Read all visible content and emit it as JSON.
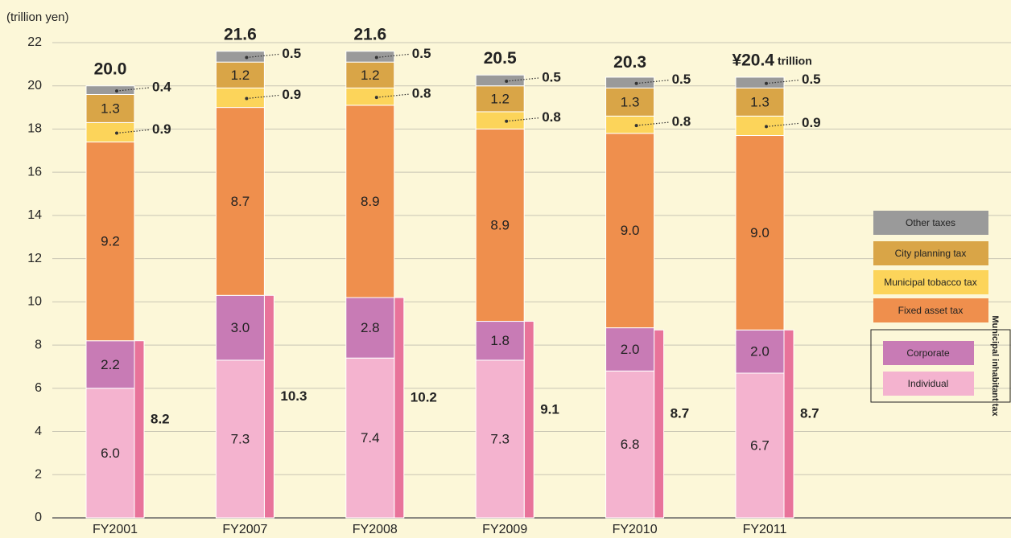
{
  "chart_data": {
    "type": "stacked_bar",
    "y_label": "(trillion yen)",
    "categories": [
      "FY2001",
      "FY2007",
      "FY2008",
      "FY2009",
      "FY2010",
      "FY2011"
    ],
    "series": [
      {
        "name": "Individual",
        "color": "#f4b3cf",
        "values": [
          6.0,
          7.3,
          7.4,
          7.3,
          6.8,
          6.7
        ],
        "value_labels": [
          "6.0",
          "7.3",
          "7.4",
          "7.3",
          "6.8",
          "6.7"
        ]
      },
      {
        "name": "Corporate",
        "color": "#c87bb5",
        "values": [
          2.2,
          3.0,
          2.8,
          1.8,
          2.0,
          2.0
        ],
        "value_labels": [
          "2.2",
          "3.0",
          "2.8",
          "1.8",
          "2.0",
          "2.0"
        ]
      },
      {
        "name": "Fixed asset tax",
        "color": "#ef8f4d",
        "values": [
          9.2,
          8.7,
          8.9,
          8.9,
          9.0,
          9.0
        ],
        "value_labels": [
          "9.2",
          "8.7",
          "8.9",
          "8.9",
          "9.0",
          "9.0"
        ]
      },
      {
        "name": "Municipal tobacco tax",
        "color": "#fcd45a",
        "values": [
          0.9,
          0.9,
          0.8,
          0.8,
          0.8,
          0.9
        ]
      },
      {
        "name": "City planning tax",
        "color": "#d9a547",
        "values": [
          1.3,
          1.2,
          1.2,
          1.2,
          1.3,
          1.3
        ]
      },
      {
        "name": "Other taxes",
        "color": "#9a9a9a",
        "values": [
          0.4,
          0.5,
          0.5,
          0.5,
          0.5,
          0.5
        ]
      }
    ],
    "inhabitant": {
      "name": "Municipal inhabitant tax",
      "color": "#e8739a",
      "values": [
        8.2,
        10.3,
        10.2,
        9.1,
        8.7,
        8.7
      ]
    },
    "totals": [
      20.0,
      21.6,
      21.6,
      20.5,
      20.3,
      20.4
    ],
    "total_labels": [
      "20.0",
      "21.6",
      "21.6",
      "20.5",
      "20.3",
      "¥20.4"
    ],
    "total_unit": "trillion",
    "ylim": [
      0,
      22
    ],
    "yticks": [
      0,
      2,
      4,
      6,
      8,
      10,
      12,
      14,
      16,
      18,
      20,
      22
    ],
    "grid": true
  }
}
